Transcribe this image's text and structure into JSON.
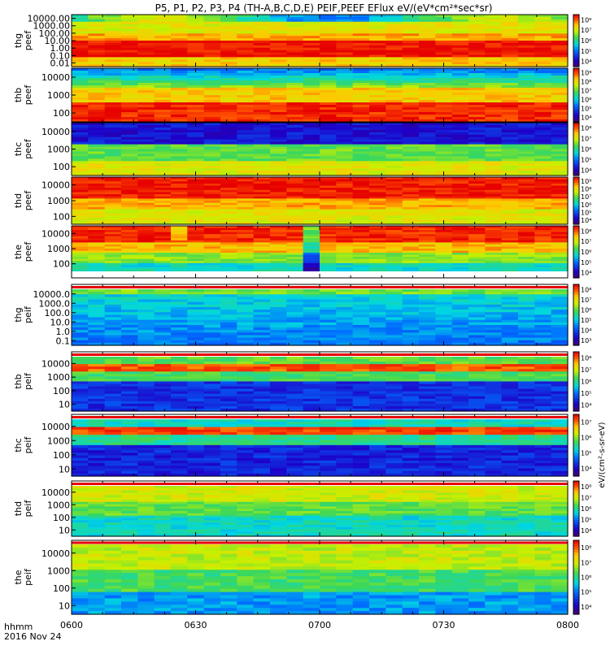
{
  "chart_data": {
    "type": "heatmap",
    "title": "P5, P1, P2, P3, P4 (TH-A,B,C,D,E) PEIF,PEEF EFlux eV/(eV*cm²*sec*sr)",
    "x_axis": {
      "start": "0600",
      "end": "0800",
      "ticks": [
        "0600",
        "0630",
        "0700",
        "0730",
        "0800"
      ],
      "minor_ticks_per_interval": 3,
      "label_line1": "hhmm",
      "label_line2": "2016 Nov 24"
    },
    "colorbar_label": "eV/(cm²-s-sr-eV)",
    "panels": [
      {
        "label1": "thg",
        "label2": "peef",
        "y_ticks": [
          "10000.00",
          "1000.00",
          "100.00",
          "10.00",
          "1.00",
          "0.10",
          "0.01"
        ],
        "colorbar_ticks": [
          "10⁸",
          "10⁷",
          "10⁶",
          "10⁵",
          "10⁴"
        ],
        "profile": "thg_peef"
      },
      {
        "label1": "thb",
        "label2": "peef",
        "y_ticks": [
          "10000",
          "1000",
          "100"
        ],
        "colorbar_ticks": [
          "10⁹",
          "10⁸",
          "10⁷",
          "10⁶",
          "10⁵",
          "10⁴"
        ],
        "profile": "peef_b"
      },
      {
        "label1": "thc",
        "label2": "peef",
        "y_ticks": [
          "10000",
          "1000",
          "100"
        ],
        "colorbar_ticks": [
          "10⁸",
          "10⁷",
          "10⁶",
          "10⁵",
          "10⁴"
        ],
        "profile": "peef_c"
      },
      {
        "label1": "thd",
        "label2": "peef",
        "y_ticks": [
          "10000",
          "1000",
          "100"
        ],
        "colorbar_ticks": [
          "10⁹",
          "10⁸",
          "10⁷",
          "10⁶",
          "10⁵",
          "10⁴"
        ],
        "profile": "peef_d"
      },
      {
        "label1": "the",
        "label2": "peef",
        "y_ticks": [
          "10000",
          "1000",
          "100"
        ],
        "colorbar_ticks": [
          "10⁸",
          "10⁷",
          "10⁶",
          "10⁵",
          "10⁴"
        ],
        "profile": "peef_e"
      },
      {
        "label1": "thg",
        "label2": "peif",
        "y_ticks": [
          "10000.0",
          "1000.0",
          "100.0",
          "10.0",
          "1.0",
          "0.1"
        ],
        "colorbar_ticks": [
          "10⁸",
          "10⁷",
          "10⁶",
          "10⁵",
          "10⁴",
          "10³"
        ],
        "profile": "peif_g"
      },
      {
        "label1": "thb",
        "label2": "peif",
        "y_ticks": [
          "10000",
          "1000",
          "100",
          "10"
        ],
        "colorbar_ticks": [
          "10⁸",
          "10⁷",
          "10⁶",
          "10⁵",
          "10⁴"
        ],
        "profile": "peif_b"
      },
      {
        "label1": "thc",
        "label2": "peif",
        "y_ticks": [
          "10000",
          "1000",
          "100",
          "10"
        ],
        "colorbar_ticks": [
          "10⁷",
          "10⁶",
          "10⁵",
          "10⁴"
        ],
        "profile": "peif_c"
      },
      {
        "label1": "thd",
        "label2": "peif",
        "y_ticks": [
          "10000",
          "1000",
          "100",
          "10"
        ],
        "colorbar_ticks": [
          "10⁸",
          "10⁷",
          "10⁶",
          "10⁵",
          "10⁴"
        ],
        "profile": "peif_d"
      },
      {
        "label1": "the",
        "label2": "peif",
        "y_ticks": [
          "10000",
          "1000",
          "100",
          "10"
        ],
        "colorbar_ticks": [
          "10⁸",
          "10⁷",
          "10⁶",
          "10⁵",
          "10⁴"
        ],
        "profile": "peif_e"
      }
    ]
  }
}
